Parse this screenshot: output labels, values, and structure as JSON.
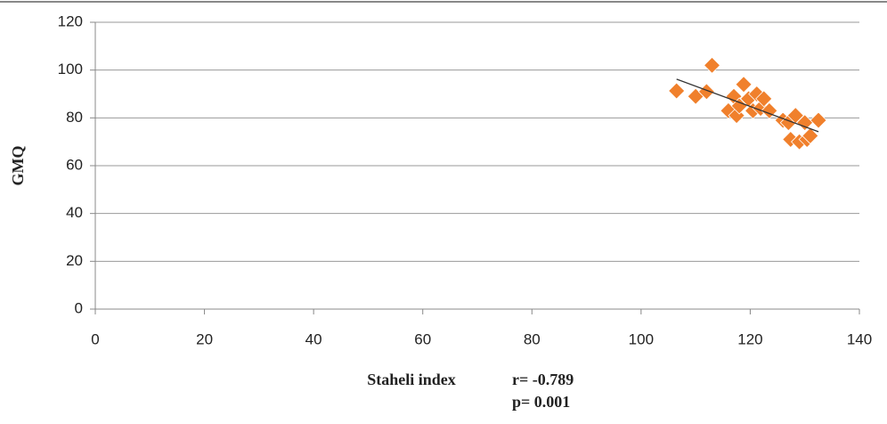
{
  "chart_data": {
    "type": "scatter",
    "x_label": "Staheli index",
    "y_label": "GMQ",
    "annotations": [
      "r=  -0.789",
      "p=  0.001"
    ],
    "series": [
      {
        "name": "GMQ",
        "color": "#f0802c",
        "x": [
          106.5,
          110,
          112,
          113,
          116,
          117,
          117.5,
          118,
          118.8,
          119.7,
          120.5,
          121.2,
          121.9,
          122.5,
          123.5,
          126,
          127,
          127.4,
          128.3,
          129,
          130,
          130.4,
          131,
          132.5
        ],
        "values": [
          91.3,
          89,
          91,
          102,
          83,
          89,
          81,
          85,
          94,
          88,
          83,
          90,
          84,
          88,
          83,
          79,
          78,
          71,
          81,
          70,
          78,
          71,
          72.5,
          79
        ]
      }
    ],
    "trendline": {
      "color": "#333333",
      "x": [
        106.5,
        132.5
      ],
      "values": [
        96.2,
        74.2
      ]
    },
    "xlim": [
      0,
      140
    ],
    "xticks": [
      0,
      20,
      40,
      60,
      80,
      100,
      120,
      140
    ],
    "ylim": [
      0,
      120
    ],
    "yticks": [
      0,
      20,
      40,
      60,
      80,
      100,
      120
    ],
    "grid": true
  }
}
